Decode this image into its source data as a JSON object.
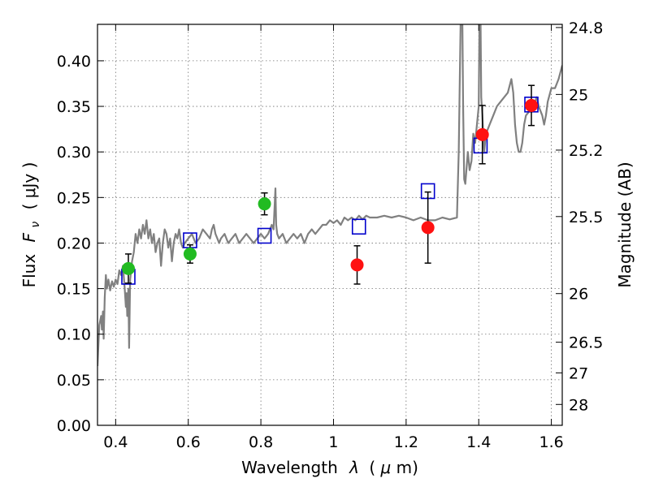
{
  "chart_data": {
    "type": "scatter",
    "xlabel_text": "Wavelength",
    "xlabel_symbol": "λ",
    "xlabel_unit_open": "(",
    "xlabel_mu": "μ",
    "xlabel_unit_close": "m)",
    "ylabel_text": "Flux",
    "ylabel_symbol": "F",
    "ylabel_subscript": "ν",
    "ylabel_unit": "( μJy )",
    "y2label": "Magnitude (AB)",
    "xlim": [
      0.35,
      1.63
    ],
    "ylim": [
      0.0,
      0.44
    ],
    "grid": true,
    "x_ticks": [
      {
        "value": 0.4,
        "label": "0.4"
      },
      {
        "value": 0.6,
        "label": "0.6"
      },
      {
        "value": 0.8,
        "label": "0.8"
      },
      {
        "value": 1.0,
        "label": "1"
      },
      {
        "value": 1.2,
        "label": "1.2"
      },
      {
        "value": 1.4,
        "label": "1.4"
      },
      {
        "value": 1.6,
        "label": "1.6"
      }
    ],
    "y_ticks": [
      {
        "value": 0.0,
        "label": "0.00"
      },
      {
        "value": 0.05,
        "label": "0.05"
      },
      {
        "value": 0.1,
        "label": "0.10"
      },
      {
        "value": 0.15,
        "label": "0.15"
      },
      {
        "value": 0.2,
        "label": "0.20"
      },
      {
        "value": 0.25,
        "label": "0.25"
      },
      {
        "value": 0.3,
        "label": "0.30"
      },
      {
        "value": 0.35,
        "label": "0.35"
      },
      {
        "value": 0.4,
        "label": "0.40"
      }
    ],
    "y2_ticks": [
      {
        "label": "24.8",
        "mag": 24.8
      },
      {
        "label": "25",
        "mag": 25.0
      },
      {
        "label": "25.2",
        "mag": 25.2
      },
      {
        "label": "25.5",
        "mag": 25.5
      },
      {
        "label": "26",
        "mag": 26.0
      },
      {
        "label": "26.5",
        "mag": 26.5
      },
      {
        "label": "27",
        "mag": 27.0
      },
      {
        "label": "28",
        "mag": 28.0
      }
    ],
    "series": [
      {
        "name": "model_spectrum",
        "kind": "line",
        "color": "#808080",
        "points": [
          [
            0.35,
            0.065
          ],
          [
            0.355,
            0.11
          ],
          [
            0.36,
            0.12
          ],
          [
            0.362,
            0.105
          ],
          [
            0.365,
            0.125
          ],
          [
            0.367,
            0.095
          ],
          [
            0.37,
            0.14
          ],
          [
            0.373,
            0.165
          ],
          [
            0.376,
            0.15
          ],
          [
            0.38,
            0.16
          ],
          [
            0.385,
            0.148
          ],
          [
            0.39,
            0.158
          ],
          [
            0.395,
            0.152
          ],
          [
            0.4,
            0.16
          ],
          [
            0.405,
            0.155
          ],
          [
            0.41,
            0.17
          ],
          [
            0.415,
            0.165
          ],
          [
            0.42,
            0.175
          ],
          [
            0.425,
            0.15
          ],
          [
            0.428,
            0.13
          ],
          [
            0.43,
            0.145
          ],
          [
            0.432,
            0.12
          ],
          [
            0.435,
            0.15
          ],
          [
            0.437,
            0.085
          ],
          [
            0.44,
            0.16
          ],
          [
            0.445,
            0.18
          ],
          [
            0.45,
            0.19
          ],
          [
            0.455,
            0.21
          ],
          [
            0.46,
            0.2
          ],
          [
            0.465,
            0.215
          ],
          [
            0.47,
            0.205
          ],
          [
            0.475,
            0.22
          ],
          [
            0.48,
            0.21
          ],
          [
            0.485,
            0.225
          ],
          [
            0.49,
            0.205
          ],
          [
            0.495,
            0.215
          ],
          [
            0.5,
            0.2
          ],
          [
            0.505,
            0.21
          ],
          [
            0.51,
            0.19
          ],
          [
            0.515,
            0.2
          ],
          [
            0.52,
            0.205
          ],
          [
            0.525,
            0.175
          ],
          [
            0.53,
            0.2
          ],
          [
            0.535,
            0.215
          ],
          [
            0.54,
            0.21
          ],
          [
            0.545,
            0.195
          ],
          [
            0.55,
            0.205
          ],
          [
            0.555,
            0.18
          ],
          [
            0.56,
            0.2
          ],
          [
            0.565,
            0.21
          ],
          [
            0.57,
            0.205
          ],
          [
            0.575,
            0.215
          ],
          [
            0.58,
            0.2
          ],
          [
            0.585,
            0.195
          ],
          [
            0.59,
            0.2
          ],
          [
            0.6,
            0.205
          ],
          [
            0.61,
            0.21
          ],
          [
            0.62,
            0.2
          ],
          [
            0.63,
            0.205
          ],
          [
            0.64,
            0.215
          ],
          [
            0.65,
            0.21
          ],
          [
            0.66,
            0.205
          ],
          [
            0.665,
            0.215
          ],
          [
            0.67,
            0.22
          ],
          [
            0.675,
            0.21
          ],
          [
            0.68,
            0.205
          ],
          [
            0.685,
            0.2
          ],
          [
            0.69,
            0.205
          ],
          [
            0.7,
            0.21
          ],
          [
            0.71,
            0.2
          ],
          [
            0.72,
            0.205
          ],
          [
            0.73,
            0.21
          ],
          [
            0.74,
            0.2
          ],
          [
            0.75,
            0.205
          ],
          [
            0.76,
            0.21
          ],
          [
            0.77,
            0.205
          ],
          [
            0.78,
            0.2
          ],
          [
            0.79,
            0.205
          ],
          [
            0.8,
            0.21
          ],
          [
            0.81,
            0.205
          ],
          [
            0.82,
            0.21
          ],
          [
            0.83,
            0.22
          ],
          [
            0.835,
            0.215
          ],
          [
            0.84,
            0.26
          ],
          [
            0.842,
            0.22
          ],
          [
            0.845,
            0.21
          ],
          [
            0.85,
            0.205
          ],
          [
            0.86,
            0.21
          ],
          [
            0.87,
            0.2
          ],
          [
            0.88,
            0.205
          ],
          [
            0.89,
            0.21
          ],
          [
            0.9,
            0.205
          ],
          [
            0.91,
            0.21
          ],
          [
            0.92,
            0.2
          ],
          [
            0.93,
            0.21
          ],
          [
            0.94,
            0.215
          ],
          [
            0.95,
            0.21
          ],
          [
            0.96,
            0.215
          ],
          [
            0.97,
            0.22
          ],
          [
            0.98,
            0.22
          ],
          [
            0.99,
            0.225
          ],
          [
            1.0,
            0.222
          ],
          [
            1.01,
            0.225
          ],
          [
            1.02,
            0.22
          ],
          [
            1.03,
            0.228
          ],
          [
            1.04,
            0.225
          ],
          [
            1.05,
            0.228
          ],
          [
            1.06,
            0.225
          ],
          [
            1.07,
            0.23
          ],
          [
            1.08,
            0.226
          ],
          [
            1.09,
            0.23
          ],
          [
            1.1,
            0.228
          ],
          [
            1.12,
            0.228
          ],
          [
            1.14,
            0.23
          ],
          [
            1.16,
            0.228
          ],
          [
            1.18,
            0.23
          ],
          [
            1.2,
            0.228
          ],
          [
            1.22,
            0.225
          ],
          [
            1.24,
            0.228
          ],
          [
            1.26,
            0.225
          ],
          [
            1.28,
            0.225
          ],
          [
            1.3,
            0.228
          ],
          [
            1.32,
            0.226
          ],
          [
            1.34,
            0.228
          ],
          [
            1.345,
            0.3
          ],
          [
            1.35,
            0.44
          ],
          [
            1.355,
            0.44
          ],
          [
            1.357,
            0.35
          ],
          [
            1.36,
            0.27
          ],
          [
            1.363,
            0.265
          ],
          [
            1.37,
            0.3
          ],
          [
            1.375,
            0.28
          ],
          [
            1.38,
            0.29
          ],
          [
            1.385,
            0.32
          ],
          [
            1.39,
            0.31
          ],
          [
            1.395,
            0.33
          ],
          [
            1.4,
            0.35
          ],
          [
            1.402,
            0.44
          ],
          [
            1.405,
            0.44
          ],
          [
            1.407,
            0.36
          ],
          [
            1.41,
            0.34
          ],
          [
            1.415,
            0.3
          ],
          [
            1.42,
            0.32
          ],
          [
            1.43,
            0.33
          ],
          [
            1.44,
            0.34
          ],
          [
            1.45,
            0.35
          ],
          [
            1.46,
            0.355
          ],
          [
            1.47,
            0.36
          ],
          [
            1.48,
            0.365
          ],
          [
            1.49,
            0.38
          ],
          [
            1.495,
            0.365
          ],
          [
            1.5,
            0.33
          ],
          [
            1.505,
            0.31
          ],
          [
            1.51,
            0.3
          ],
          [
            1.515,
            0.3
          ],
          [
            1.52,
            0.31
          ],
          [
            1.525,
            0.33
          ],
          [
            1.53,
            0.34
          ],
          [
            1.54,
            0.345
          ],
          [
            1.55,
            0.35
          ],
          [
            1.56,
            0.36
          ],
          [
            1.565,
            0.35
          ],
          [
            1.57,
            0.345
          ],
          [
            1.575,
            0.34
          ],
          [
            1.58,
            0.33
          ],
          [
            1.585,
            0.34
          ],
          [
            1.59,
            0.355
          ],
          [
            1.6,
            0.37
          ],
          [
            1.61,
            0.37
          ],
          [
            1.62,
            0.38
          ],
          [
            1.63,
            0.395
          ]
        ]
      },
      {
        "name": "model_photometry",
        "kind": "open-square",
        "color": "#0000cc",
        "x": [
          0.435,
          0.605,
          0.81,
          1.07,
          1.26,
          1.405,
          1.545
        ],
        "y": [
          0.163,
          0.203,
          0.208,
          0.218,
          0.257,
          0.307,
          0.352
        ]
      },
      {
        "name": "observed_optical",
        "kind": "point",
        "color": "#22bb22",
        "x": [
          0.435,
          0.605,
          0.81
        ],
        "y": [
          0.172,
          0.188,
          0.243
        ],
        "yerr": [
          0.016,
          0.01,
          0.012
        ]
      },
      {
        "name": "observed_nir",
        "kind": "point",
        "color": "#ff1111",
        "x": [
          1.065,
          1.26,
          1.41,
          1.545
        ],
        "y": [
          0.176,
          0.217,
          0.319,
          0.351
        ],
        "yerr": [
          0.021,
          0.039,
          0.032,
          0.022
        ]
      }
    ]
  }
}
